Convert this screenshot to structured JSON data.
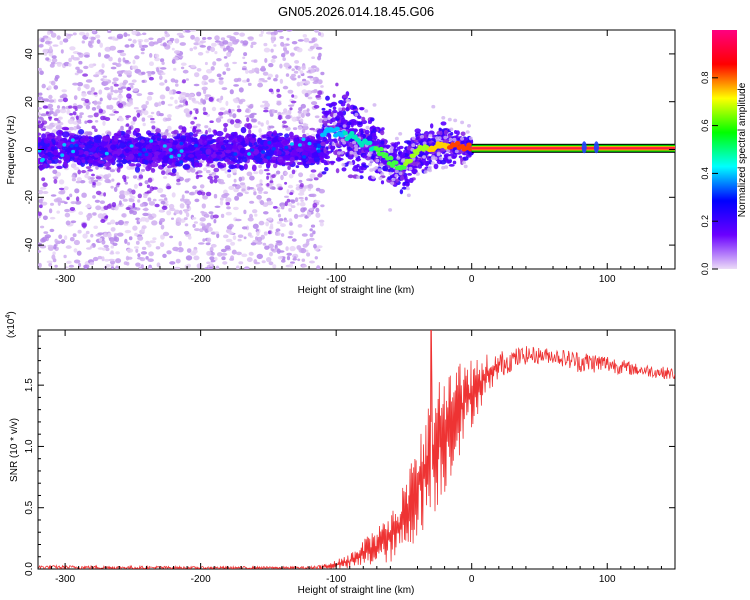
{
  "title": "GN05.2026.014.18.45.G06",
  "chart_data": [
    {
      "type": "heatmap",
      "name": "spectrogram",
      "xlabel": "Height of straight line (km)",
      "ylabel": "Frequency (Hz)",
      "xlim": [
        -320,
        150
      ],
      "ylim": [
        -50,
        50
      ],
      "xticks": [
        -300,
        -200,
        -100,
        0,
        100
      ],
      "xtick_labels": [
        "-300",
        "-200",
        "-100",
        "0",
        "100"
      ],
      "yticks": [
        -40,
        -20,
        0,
        20,
        40
      ],
      "ytick_labels": [
        "-40",
        "-20",
        "0",
        "20",
        "40"
      ],
      "features": {
        "noise_region_x": [
          -320,
          -110
        ],
        "noise_band_hz": [
          -8,
          8
        ],
        "transition_track": [
          [
            -110,
            7
          ],
          [
            -100,
            8
          ],
          [
            -90,
            6
          ],
          [
            -80,
            3
          ],
          [
            -70,
            0
          ],
          [
            -60,
            -5
          ],
          [
            -52,
            -8
          ],
          [
            -45,
            -4
          ],
          [
            -38,
            0
          ],
          [
            -30,
            1
          ],
          [
            -20,
            2
          ],
          [
            -10,
            1
          ],
          [
            0,
            0.5
          ]
        ],
        "carrier_line_x": [
          0,
          150
        ],
        "carrier_line_hz": 0.5,
        "isolated_points_x": [
          83,
          92
        ]
      },
      "colorbar": {
        "label": "Normalized spectral amplitude",
        "range": [
          0,
          1
        ],
        "ticks": [
          0.0,
          0.2,
          0.4,
          0.6,
          0.8
        ],
        "tick_labels": [
          "0.0",
          "0.2",
          "0.4",
          "0.6",
          "0.8"
        ],
        "colors": [
          "#ecdcf7",
          "#6a00ff",
          "#0000ff",
          "#00ffff",
          "#00ff00",
          "#ffff00",
          "#ff0000",
          "#ff0080"
        ]
      }
    },
    {
      "type": "line",
      "name": "snr",
      "xlabel": "Height of straight line (km)",
      "ylabel": "SNR (10 * v/v)",
      "scale_label": "(x10",
      "scale_exp": "4",
      "scale_close": ")",
      "xlim": [
        -320,
        150
      ],
      "ylim": [
        0,
        1.95
      ],
      "xticks": [
        -300,
        -200,
        -100,
        0,
        100
      ],
      "xtick_labels": [
        "-300",
        "-200",
        "-100",
        "0",
        "100"
      ],
      "yticks": [
        0.0,
        0.5,
        1.0,
        1.5
      ],
      "ytick_labels": [
        "0.0",
        "0.5",
        "1.0",
        "1.5"
      ],
      "color": "#ee3333",
      "series": [
        {
          "name": "SNR",
          "envelope_x": [
            -320,
            -200,
            -120,
            -105,
            -90,
            -75,
            -60,
            -50,
            -40,
            -30,
            -20,
            -10,
            0,
            10,
            20,
            30,
            40,
            60,
            80,
            100,
            120,
            150
          ],
          "envelope_min": [
            0.0,
            0.0,
            0.0,
            0.0,
            0.0,
            0.02,
            0.05,
            0.1,
            0.25,
            0.4,
            0.6,
            0.9,
            1.15,
            1.4,
            1.55,
            1.62,
            1.67,
            1.68,
            1.6,
            1.6,
            1.58,
            1.54
          ],
          "envelope_max": [
            0.03,
            0.02,
            0.02,
            0.05,
            0.12,
            0.3,
            0.45,
            0.7,
            1.1,
            1.5,
            1.65,
            1.7,
            1.72,
            1.75,
            1.78,
            1.8,
            1.82,
            1.8,
            1.78,
            1.75,
            1.68,
            1.64
          ],
          "peak": {
            "x": -30,
            "y": 1.95
          }
        }
      ]
    }
  ]
}
